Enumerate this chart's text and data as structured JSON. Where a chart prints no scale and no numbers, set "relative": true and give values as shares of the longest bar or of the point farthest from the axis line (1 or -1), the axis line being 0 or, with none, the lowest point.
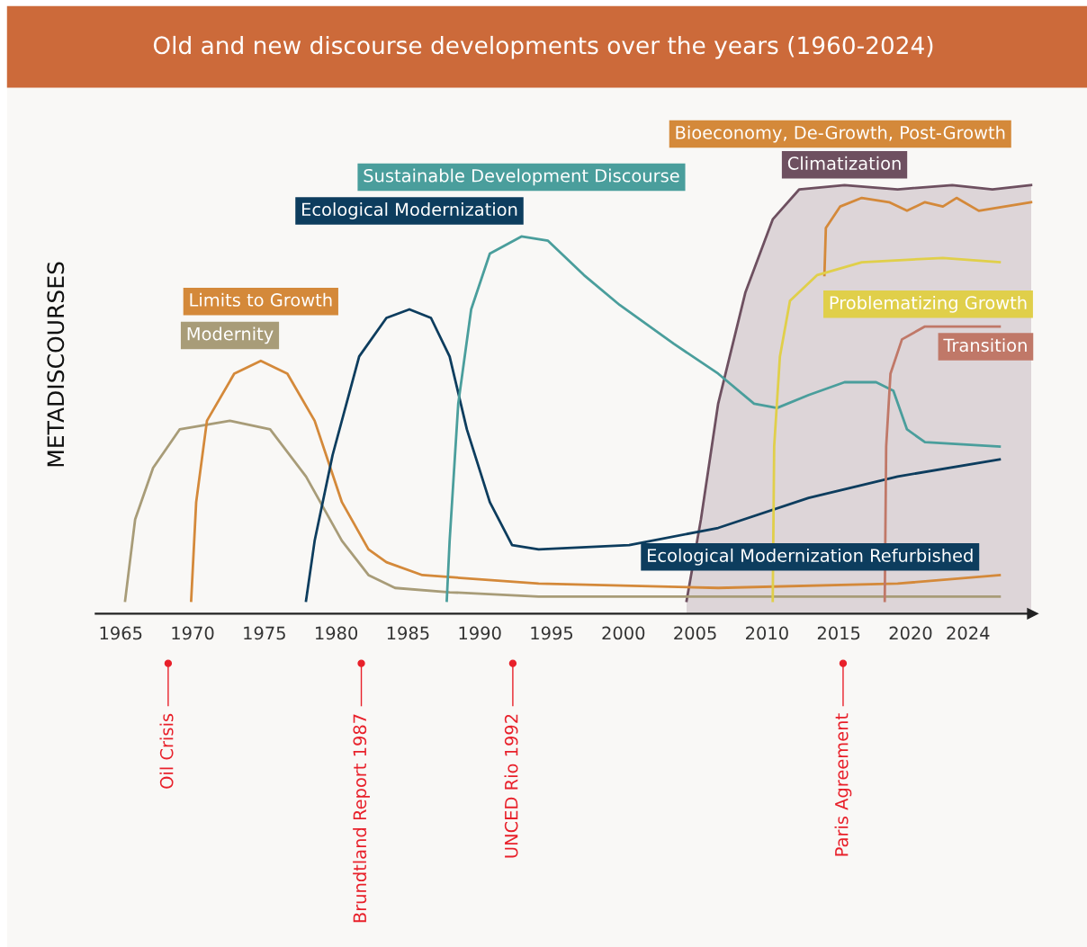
{
  "chart_data": {
    "type": "line",
    "relative": true,
    "title": "Old and new discourse developments over the years (1960-2024)",
    "ylabel": "METADISCOURSES",
    "xlim": [
      1963.25,
      2028.5
    ],
    "xticks": [
      1965,
      1970,
      1975,
      1980,
      1985,
      1990,
      1995,
      2000,
      2005,
      2010,
      2015,
      2020,
      2024
    ],
    "annotations": [
      {
        "text": "Ecological Modernization Refurbished",
        "x": 2010,
        "y": 0.24
      }
    ],
    "grid": false,
    "legend": false,
    "marker": "none",
    "line_style": "solid",
    "series": [
      {
        "name": "Climatization",
        "type": "area",
        "color": "#6e5060",
        "x": [
          2004.4,
          2005.4,
          2006.6,
          2008.5,
          2010.4,
          2012.25,
          2015.4,
          2019.1,
          2022.9,
          2025.7,
          2028.4
        ],
        "values": [
          0.03,
          0.22,
          0.49,
          0.75,
          0.92,
          0.99,
          1.0,
          0.99,
          1.0,
          0.99,
          1.0
        ]
      },
      {
        "name": "Modernity",
        "color": "#a89c78",
        "x": [
          1965.3,
          1966,
          1967.25,
          1969.1,
          1972.6,
          1975.4,
          1977.9,
          1980.4,
          1982.25,
          1984.1,
          1987.9,
          1994.1,
          2006.6,
          2026.2
        ],
        "values": [
          0.03,
          0.22,
          0.34,
          0.43,
          0.45,
          0.43,
          0.32,
          0.17,
          0.09,
          0.06,
          0.05,
          0.04,
          0.04,
          0.04
        ]
      },
      {
        "name": "Limits to Growth",
        "color": "#d4893a",
        "x": [
          1969.9,
          1970.25,
          1971,
          1972.9,
          1974.75,
          1976.6,
          1978.5,
          1980.4,
          1982.25,
          1983.5,
          1986,
          1994.1,
          2006.6,
          2019.1,
          2026.2
        ],
        "values": [
          0.03,
          0.26,
          0.45,
          0.56,
          0.59,
          0.56,
          0.45,
          0.26,
          0.15,
          0.12,
          0.09,
          0.07,
          0.06,
          0.07,
          0.09
        ]
      },
      {
        "name": "Ecological Modernization",
        "color": "#0d3d5e",
        "x": [
          1977.9,
          1978.5,
          1979.75,
          1981.6,
          1983.5,
          1985.1,
          1986.6,
          1987.9,
          1989.1,
          1990.7,
          1992.25,
          1994.1,
          2000.4,
          2006.6,
          2012.9,
          2019.1,
          2026.2
        ],
        "values": [
          0.03,
          0.17,
          0.37,
          0.6,
          0.69,
          0.71,
          0.69,
          0.6,
          0.43,
          0.26,
          0.16,
          0.15,
          0.16,
          0.2,
          0.27,
          0.32,
          0.36
        ]
      },
      {
        "name": "Sustainable Development Discourse",
        "color": "#4a9e9c",
        "x": [
          1987.7,
          1987.9,
          1988.5,
          1989.4,
          1990.7,
          1992.9,
          1994.75,
          1997.25,
          1999.75,
          2003.5,
          2006.6,
          2009.1,
          2010.7,
          2012.9,
          2015.4,
          2017.6,
          2018.8,
          2019.75,
          2021,
          2026.2
        ],
        "values": [
          0.03,
          0.17,
          0.49,
          0.71,
          0.84,
          0.88,
          0.87,
          0.79,
          0.72,
          0.63,
          0.56,
          0.49,
          0.48,
          0.51,
          0.54,
          0.54,
          0.52,
          0.43,
          0.4,
          0.39
        ]
      },
      {
        "name": "Bioeconomy, De-Growth, Post-Growth",
        "color": "#d4893a",
        "x": [
          2014,
          2014.1,
          2015.1,
          2016.6,
          2018.5,
          2019.75,
          2021,
          2022.25,
          2023.2,
          2024.75,
          2028.4
        ],
        "values": [
          0.79,
          0.9,
          0.95,
          0.97,
          0.96,
          0.94,
          0.96,
          0.95,
          0.97,
          0.94,
          0.96
        ]
      },
      {
        "name": "Problematizing Growth",
        "color": "#e0cf4a",
        "x": [
          2010.4,
          2010.5,
          2010.9,
          2011.6,
          2013.5,
          2016.6,
          2022.25,
          2026.2
        ],
        "values": [
          0.03,
          0.39,
          0.6,
          0.73,
          0.79,
          0.82,
          0.83,
          0.82
        ]
      },
      {
        "name": "Transition",
        "color": "#c07868",
        "x": [
          2018.2,
          2018.3,
          2018.6,
          2019.4,
          2021,
          2026.2
        ],
        "values": [
          0.03,
          0.39,
          0.56,
          0.64,
          0.67,
          0.67
        ]
      }
    ],
    "ref_lines": [
      {
        "axis": "x",
        "value": 1968.3,
        "label": "Oil Crisis",
        "color": "#e8202a"
      },
      {
        "axis": "x",
        "value": 1981.75,
        "label": "Brundtland Report 1987",
        "color": "#e8202a"
      },
      {
        "axis": "x",
        "value": 1992.3,
        "label": "UNCED Rio 1992",
        "color": "#e8202a"
      },
      {
        "axis": "x",
        "value": 2015.3,
        "label": "Paris Agreement",
        "color": "#e8202a"
      }
    ]
  }
}
